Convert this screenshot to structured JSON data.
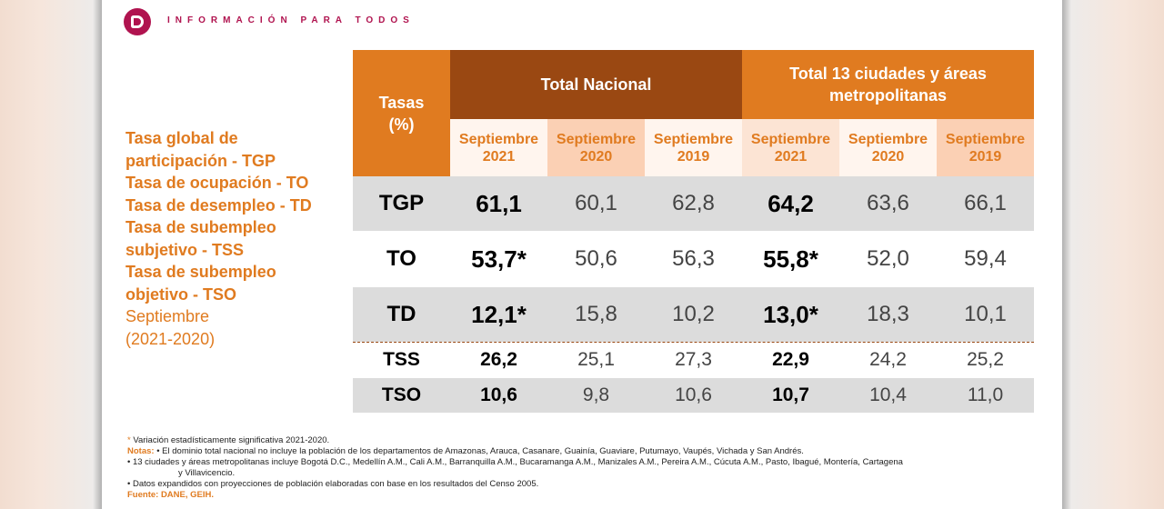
{
  "header": {
    "tagline": "INFORMACIÓN PARA TODOS"
  },
  "legend": {
    "items": [
      "Tasa global de",
      "participación - TGP",
      "Tasa de ocupación - TO",
      "Tasa de desempleo - TD",
      "Tasa de subempleo",
      "subjetivo - TSS",
      "Tasa de subempleo",
      "objetivo - TSO"
    ],
    "period_line1": "Septiembre",
    "period_line2": "(2021-2020)"
  },
  "table": {
    "tasas_label": "Tasas",
    "tasas_unit": "(%)",
    "group1": "Total Nacional",
    "group2_line1": "Total 13 ciudades y áreas",
    "group2_line2": "metropolitanas",
    "subheaders": [
      {
        "month": "Septiembre",
        "year": "2021"
      },
      {
        "month": "Septiembre",
        "year": "2020"
      },
      {
        "month": "Septiembre",
        "year": "2019"
      },
      {
        "month": "Septiembre",
        "year": "2021"
      },
      {
        "month": "Septiembre",
        "year": "2020"
      },
      {
        "month": "Septiembre",
        "year": "2019"
      }
    ],
    "rows": [
      {
        "label": "TGP",
        "values": [
          "61,1",
          "60,1",
          "62,8",
          "64,2",
          "63,6",
          "66,1"
        ]
      },
      {
        "label": "TO",
        "values": [
          "53,7*",
          "50,6",
          "56,3",
          "55,8*",
          "52,0",
          "59,4"
        ]
      },
      {
        "label": "TD",
        "values": [
          "12,1*",
          "15,8",
          "10,2",
          "13,0*",
          "18,3",
          "10,1"
        ]
      },
      {
        "label": "TSS",
        "values": [
          "26,2",
          "25,1",
          "27,3",
          "22,9",
          "24,2",
          "25,2"
        ]
      },
      {
        "label": "TSO",
        "values": [
          "10,6",
          "9,8",
          "10,6",
          "10,7",
          "10,4",
          "11,0"
        ]
      }
    ]
  },
  "notes": {
    "asterisk": "*",
    "variation": " Variación estadísticamente significativa 2021-2020.",
    "notas_label": "Notas:",
    "note1": " • El dominio total nacional no incluye la población de los departamentos de Amazonas, Arauca, Casanare, Guainía, Guaviare, Putumayo, Vaupés, Vichada y San Andrés.",
    "note2": "• 13 ciudades y áreas metropolitanas incluye Bogotá D.C., Medellín A.M., Cali A.M., Barranquilla A.M., Bucaramanga A.M., Manizales A.M., Pereira A.M., Cúcuta A.M., Pasto, Ibagué, Montería, Cartagena",
    "note2b": "y Villavicencio.",
    "note3": "• Datos expandidos con proyecciones de población elaboradas con base en los resultados del Censo 2005.",
    "source": "Fuente: DANE, GEIH."
  },
  "colors": {
    "orange": "#e07b20",
    "brown": "#9a4812",
    "brand": "#b0134f"
  }
}
